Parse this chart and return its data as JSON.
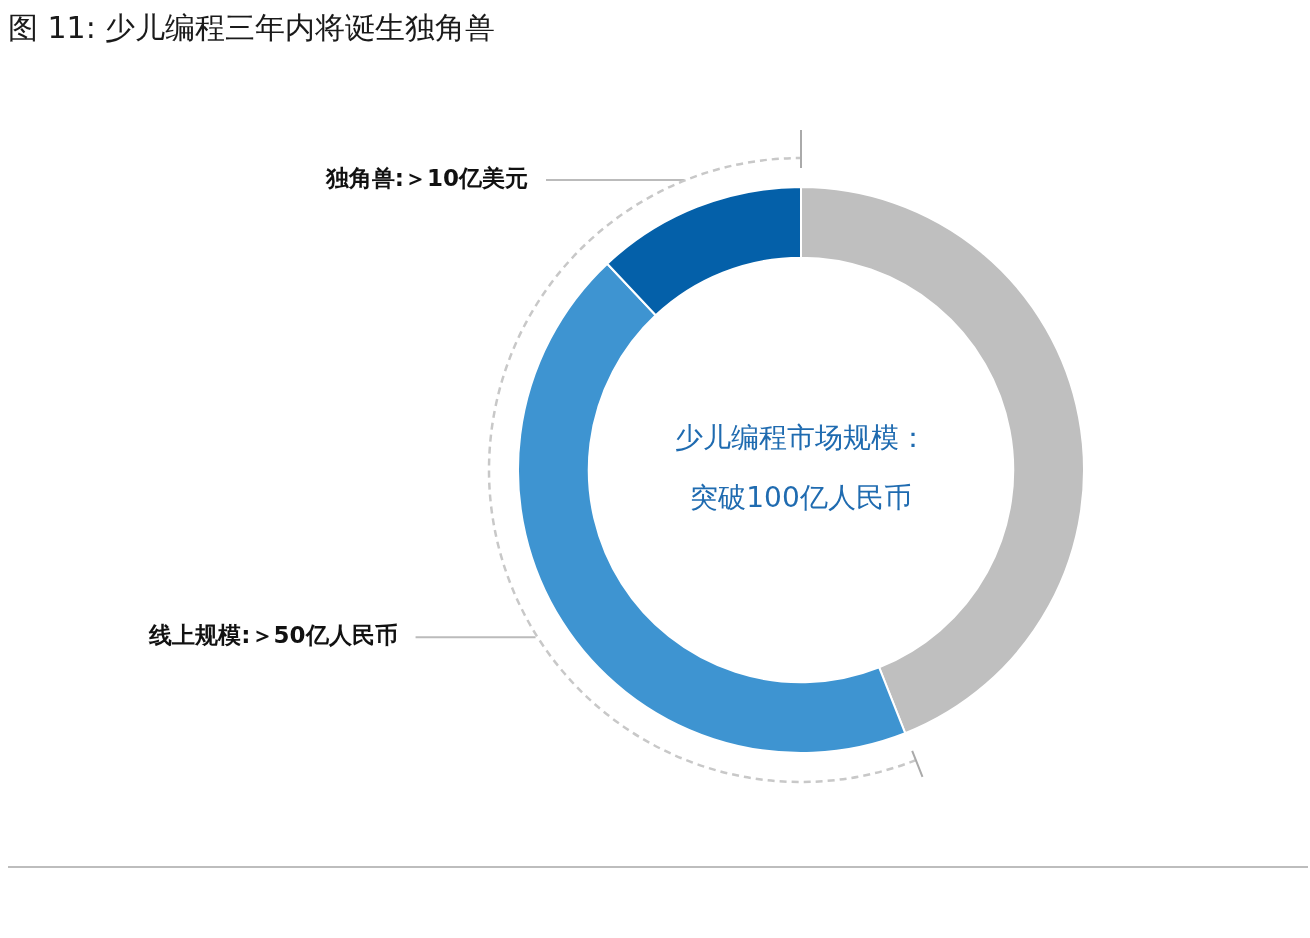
{
  "chart_data": {
    "type": "donut",
    "title": "图 11: 少儿编程三年内将诞生独角兽",
    "categories": [
      null,
      "线上规模:＞50亿人民币",
      "独角兽:＞10亿美元"
    ],
    "values": [
      44,
      44,
      12
    ],
    "colors": [
      "#bfbfbf",
      "#3e94d1",
      "#0460a9"
    ],
    "annotations": [
      "少儿编程市场规模：",
      "突破100亿人民币"
    ],
    "legend": false
  }
}
